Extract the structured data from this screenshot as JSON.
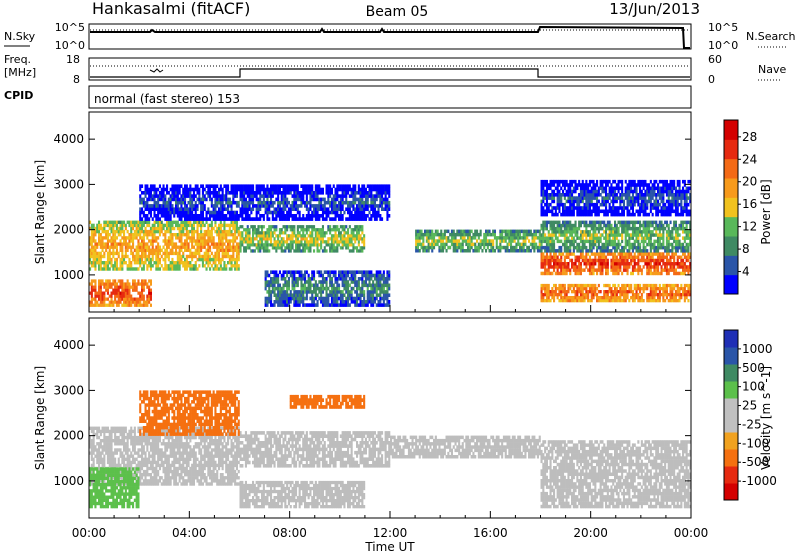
{
  "header": {
    "station": "Hankasalmi (fitACF)",
    "beam": "Beam 05",
    "date": "13/Jun/2013"
  },
  "strips": {
    "nsky_label": "N.Sky",
    "nsearch_label": "N.Search",
    "freq_label_line1": "Freq.",
    "freq_label_line2": "[MHz]",
    "nave_label": "Nave",
    "cpid_label": "CPID",
    "mode_text": "normal (fast stereo) 153",
    "noise_left_ticks": [
      "10^5",
      "10^0"
    ],
    "noise_right_ticks": [
      "10^5",
      "10^0"
    ],
    "freq_left_ticks": [
      "18",
      "8"
    ],
    "freq_right_ticks": [
      "60",
      "0"
    ]
  },
  "colors": {
    "power": [
      "#0000ff",
      "#2a55a8",
      "#3f8a63",
      "#59b85a",
      "#f1c21e",
      "#f79a1b",
      "#f46a16",
      "#e62a10",
      "#d40000"
    ],
    "velocity": [
      "#1f2fb5",
      "#2a55a8",
      "#3f8a63",
      "#5cc04b",
      "#c0c0c0",
      "#c0c0c0",
      "#f1a220",
      "#f57010",
      "#e62a10",
      "#d40000"
    ],
    "ground_scatter": "#bdbdbd"
  },
  "chart_data": [
    {
      "type": "heatmap",
      "panel": "power",
      "ylabel": "Slant Range [km]",
      "ylim": [
        180,
        4600
      ],
      "yticks": [
        "1000",
        "2000",
        "3000",
        "4000"
      ],
      "xlim_hours": [
        0,
        24
      ],
      "colorbar_label": "Power [dB]",
      "colorbar_ticks": [
        "4",
        "8",
        "12",
        "16",
        "20",
        "24",
        "28"
      ],
      "colorbar_range": [
        0,
        31
      ],
      "bands": [
        {
          "t0": 0,
          "t1": 6,
          "r0": 1100,
          "r1": 2200,
          "value": 20
        },
        {
          "t0": 0,
          "t1": 2.5,
          "r0": 300,
          "r1": 900,
          "value": 26
        },
        {
          "t0": 6,
          "t1": 11,
          "r0": 1500,
          "r1": 2100,
          "value": 16
        },
        {
          "t0": 2,
          "t1": 12,
          "r0": 2200,
          "r1": 3000,
          "value": 6
        },
        {
          "t0": 7,
          "t1": 12,
          "r0": 300,
          "r1": 1100,
          "value": 10
        },
        {
          "t0": 13,
          "t1": 18,
          "r0": 1500,
          "r1": 2000,
          "value": 15
        },
        {
          "t0": 18,
          "t1": 24,
          "r0": 1000,
          "r1": 1500,
          "value": 27
        },
        {
          "t0": 18,
          "t1": 24,
          "r0": 400,
          "r1": 800,
          "value": 25
        },
        {
          "t0": 18,
          "t1": 24,
          "r0": 1500,
          "r1": 2200,
          "value": 14
        },
        {
          "t0": 18,
          "t1": 24,
          "r0": 2300,
          "r1": 3100,
          "value": 6
        }
      ]
    },
    {
      "type": "heatmap",
      "panel": "velocity",
      "ylabel": "Slant Range [km]",
      "xlabel": "Time UT",
      "ylim": [
        180,
        4600
      ],
      "yticks": [
        "1000",
        "2000",
        "3000",
        "4000"
      ],
      "xlim_hours": [
        0,
        24
      ],
      "xticks": [
        "00:00",
        "04:00",
        "08:00",
        "12:00",
        "16:00",
        "20:00",
        "00:00"
      ],
      "colorbar_label": "Velocity [m s^-1]",
      "colorbar_ticks": [
        "1000",
        "500",
        "100",
        "25",
        "-25",
        "-100",
        "-500",
        "-1000"
      ],
      "bands": [
        {
          "t0": 0,
          "t1": 6,
          "r0": 900,
          "r1": 2200,
          "value": 0
        },
        {
          "t0": 0,
          "t1": 2,
          "r0": 400,
          "r1": 1300,
          "value": 120
        },
        {
          "t0": 6,
          "t1": 12,
          "r0": 1300,
          "r1": 2100,
          "value": 0
        },
        {
          "t0": 6,
          "t1": 11,
          "r0": 400,
          "r1": 1000,
          "value": 0
        },
        {
          "t0": 12,
          "t1": 18,
          "r0": 1500,
          "r1": 2000,
          "value": 0
        },
        {
          "t0": 18,
          "t1": 24,
          "r0": 400,
          "r1": 1900,
          "value": 0
        },
        {
          "t0": 2,
          "t1": 6,
          "r0": 2000,
          "r1": 3000,
          "value": -150
        },
        {
          "t0": 8,
          "t1": 11,
          "r0": 2600,
          "r1": 2900,
          "value": -300
        }
      ]
    }
  ]
}
